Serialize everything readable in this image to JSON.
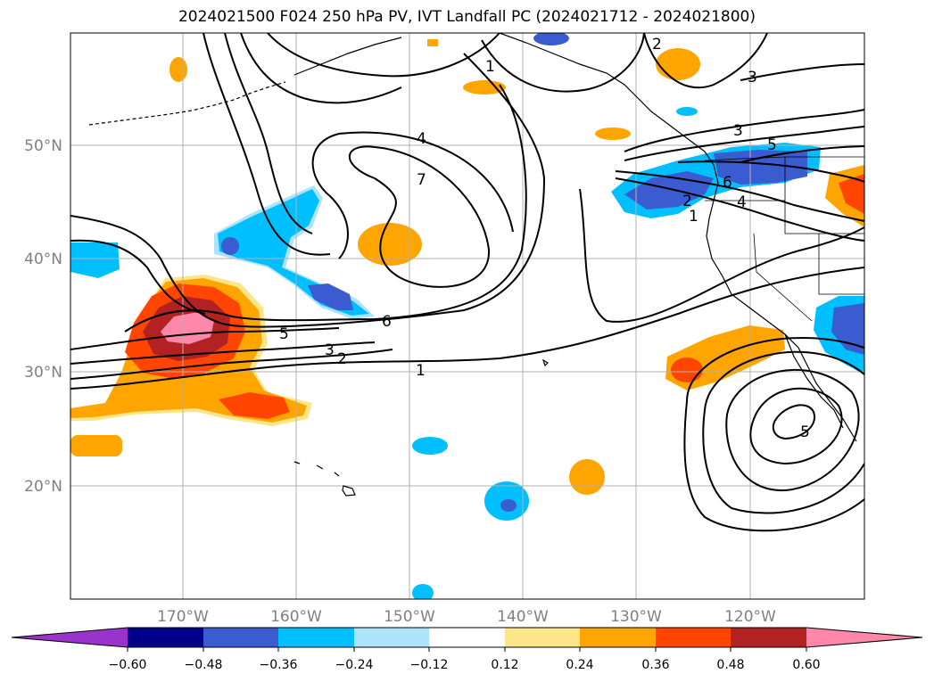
{
  "title": "2024021500 F024 250 hPa PV, IVT Landfall PC (2024021712 - 2024021800)",
  "lat_labels": [
    "50°N",
    "40°N",
    "30°N",
    "20°N"
  ],
  "lon_labels": [
    "170°W",
    "160°W",
    "150°W",
    "140°W",
    "130°W",
    "120°W"
  ],
  "colorbar": {
    "tick_labels": [
      "−0.60",
      "−0.48",
      "−0.36",
      "−0.24",
      "−0.12",
      "0.12",
      "0.24",
      "0.36",
      "0.48",
      "0.60"
    ],
    "colors": [
      "#9933cc",
      "#00008b",
      "#3b5bd1",
      "#00bfff",
      "#aee4fb",
      "#ffffff",
      "#fde68a",
      "#ffa500",
      "#ff4500",
      "#b22222",
      "#ff88aa"
    ]
  },
  "contour_labels": [
    "1",
    "2",
    "3",
    "4",
    "5",
    "6",
    "7",
    "1",
    "2",
    "3",
    "4",
    "5",
    "6",
    "1",
    "2",
    "3",
    "5"
  ],
  "palette": {
    "orange": "#ffa500",
    "light_orange": "#fde68a",
    "red_orange": "#ff4500",
    "dark_red": "#b22222",
    "pink": "#ff88aa",
    "cyan": "#00bfff",
    "light_blue": "#aee4fb",
    "blue": "#3b5bd1",
    "grid": "#b0b0b0",
    "tick_text": "#808080"
  }
}
